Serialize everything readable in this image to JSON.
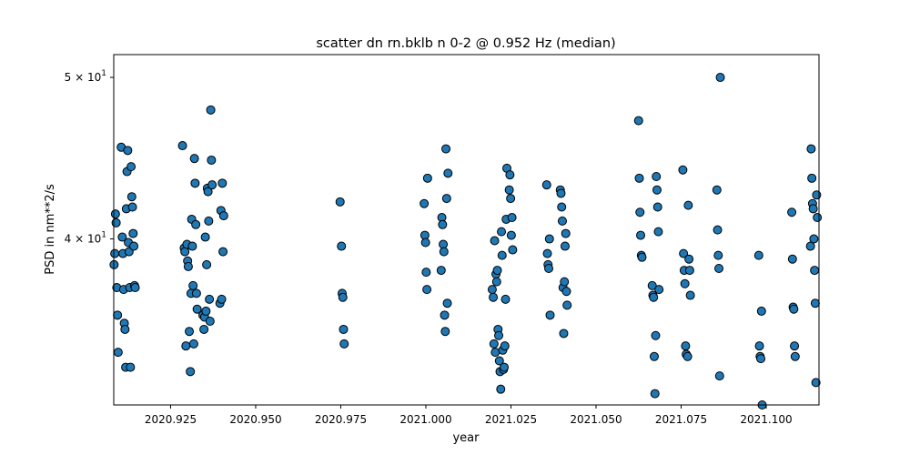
{
  "chart_data": {
    "type": "scatter",
    "title": "scatter dn rn.bklb n 0-2 @ 0.952 Hz (median)",
    "xlabel": "year",
    "ylabel": "PSD in nm**2/s",
    "yscale": "log",
    "xlim": [
      2020.9083,
      2021.1155
    ],
    "ylim": [
      31.8,
      51.6
    ],
    "grid": false,
    "marker_color": "#1f77b4",
    "marker_edge_color": "#000000",
    "x_ticks": [
      {
        "value": 2020.925,
        "label": "2020.925"
      },
      {
        "value": 2020.95,
        "label": "2020.950"
      },
      {
        "value": 2020.975,
        "label": "2020.975"
      },
      {
        "value": 2021.0,
        "label": "2021.000"
      },
      {
        "value": 2021.025,
        "label": "2021.025"
      },
      {
        "value": 2021.05,
        "label": "2021.050"
      },
      {
        "value": 2021.075,
        "label": "2021.075"
      },
      {
        "value": 2021.1,
        "label": "2021.100"
      }
    ],
    "y_ticks": [
      {
        "value": 40,
        "label": "4 × 10",
        "exp": "1"
      },
      {
        "value": 50,
        "label": "5 × 10",
        "exp": "1"
      }
    ],
    "points": [
      [
        2020.9084,
        38.6
      ],
      [
        2020.9086,
        39.2
      ],
      [
        2020.9088,
        41.4
      ],
      [
        2020.909,
        40.9
      ],
      [
        2020.9092,
        37.4
      ],
      [
        2020.9094,
        36.0
      ],
      [
        2020.9096,
        34.2
      ],
      [
        2020.9105,
        45.4
      ],
      [
        2020.9108,
        40.1
      ],
      [
        2020.911,
        39.2
      ],
      [
        2020.9112,
        37.3
      ],
      [
        2020.9114,
        35.6
      ],
      [
        2020.9116,
        35.3
      ],
      [
        2020.9118,
        33.5
      ],
      [
        2020.912,
        41.7
      ],
      [
        2020.9122,
        43.9
      ],
      [
        2020.9124,
        45.2
      ],
      [
        2020.9126,
        39.8
      ],
      [
        2020.9128,
        39.3
      ],
      [
        2020.913,
        37.4
      ],
      [
        2020.9132,
        33.5
      ],
      [
        2020.9134,
        44.2
      ],
      [
        2020.9136,
        42.4
      ],
      [
        2020.9138,
        41.8
      ],
      [
        2020.914,
        40.3
      ],
      [
        2020.9142,
        39.6
      ],
      [
        2020.9144,
        37.5
      ],
      [
        2020.9146,
        37.4
      ],
      [
        2020.9285,
        45.5
      ],
      [
        2020.929,
        39.5
      ],
      [
        2020.9292,
        39.3
      ],
      [
        2020.9295,
        34.5
      ],
      [
        2020.9298,
        39.7
      ],
      [
        2020.93,
        38.8
      ],
      [
        2020.9302,
        38.5
      ],
      [
        2020.9305,
        35.2
      ],
      [
        2020.9308,
        33.3
      ],
      [
        2020.931,
        37.1
      ],
      [
        2020.9312,
        41.1
      ],
      [
        2020.9314,
        39.6
      ],
      [
        2020.9316,
        37.5
      ],
      [
        2020.9318,
        34.6
      ],
      [
        2020.932,
        44.7
      ],
      [
        2020.9322,
        43.2
      ],
      [
        2020.9324,
        40.8
      ],
      [
        2020.9326,
        37.1
      ],
      [
        2020.9328,
        36.3
      ],
      [
        2020.9345,
        36.0
      ],
      [
        2020.9348,
        35.3
      ],
      [
        2020.935,
        35.9
      ],
      [
        2020.9352,
        40.1
      ],
      [
        2020.9354,
        36.2
      ],
      [
        2020.9356,
        38.6
      ],
      [
        2020.9358,
        42.9
      ],
      [
        2020.936,
        42.7
      ],
      [
        2020.9362,
        41.0
      ],
      [
        2020.9364,
        36.8
      ],
      [
        2020.9366,
        35.7
      ],
      [
        2020.9368,
        47.8
      ],
      [
        2020.937,
        44.6
      ],
      [
        2020.9372,
        43.1
      ],
      [
        2020.9395,
        36.6
      ],
      [
        2020.9398,
        41.6
      ],
      [
        2020.94,
        36.8
      ],
      [
        2020.9402,
        43.2
      ],
      [
        2020.9404,
        39.3
      ],
      [
        2020.9406,
        41.3
      ],
      [
        2020.9748,
        42.1
      ],
      [
        2020.9752,
        39.6
      ],
      [
        2020.9754,
        37.1
      ],
      [
        2020.9756,
        36.9
      ],
      [
        2020.9758,
        35.3
      ],
      [
        2020.976,
        34.6
      ],
      [
        2020.9995,
        42.0
      ],
      [
        2020.9997,
        40.2
      ],
      [
        2020.9999,
        39.8
      ],
      [
        2021.0001,
        38.2
      ],
      [
        2021.0003,
        37.3
      ],
      [
        2021.0005,
        43.5
      ],
      [
        2021.0045,
        38.3
      ],
      [
        2021.0047,
        41.2
      ],
      [
        2021.0049,
        40.8
      ],
      [
        2021.0051,
        39.7
      ],
      [
        2021.0053,
        39.3
      ],
      [
        2021.0055,
        36.0
      ],
      [
        2021.0057,
        35.2
      ],
      [
        2021.0059,
        45.3
      ],
      [
        2021.0061,
        42.3
      ],
      [
        2021.0063,
        36.6
      ],
      [
        2021.0065,
        43.8
      ],
      [
        2021.0195,
        37.3
      ],
      [
        2021.0198,
        36.9
      ],
      [
        2021.02,
        34.6
      ],
      [
        2021.0202,
        39.9
      ],
      [
        2021.0204,
        34.2
      ],
      [
        2021.0206,
        38.1
      ],
      [
        2021.0208,
        37.7
      ],
      [
        2021.021,
        38.3
      ],
      [
        2021.0212,
        35.3
      ],
      [
        2021.0214,
        35.0
      ],
      [
        2021.0216,
        33.8
      ],
      [
        2021.0218,
        33.3
      ],
      [
        2021.022,
        32.5
      ],
      [
        2021.0222,
        40.4
      ],
      [
        2021.0224,
        39.1
      ],
      [
        2021.0226,
        34.3
      ],
      [
        2021.0228,
        33.4
      ],
      [
        2021.023,
        33.5
      ],
      [
        2021.0232,
        34.5
      ],
      [
        2021.0234,
        36.8
      ],
      [
        2021.0236,
        41.1
      ],
      [
        2021.0238,
        44.1
      ],
      [
        2021.0245,
        42.8
      ],
      [
        2021.0247,
        43.7
      ],
      [
        2021.0249,
        42.3
      ],
      [
        2021.0251,
        40.2
      ],
      [
        2021.0253,
        41.2
      ],
      [
        2021.0255,
        39.4
      ],
      [
        2021.0355,
        43.1
      ],
      [
        2021.0357,
        39.2
      ],
      [
        2021.0359,
        38.6
      ],
      [
        2021.0361,
        38.4
      ],
      [
        2021.0363,
        40.0
      ],
      [
        2021.0365,
        36.0
      ],
      [
        2021.0395,
        42.8
      ],
      [
        2021.0397,
        42.6
      ],
      [
        2021.0399,
        41.8
      ],
      [
        2021.0401,
        41.0
      ],
      [
        2021.0403,
        37.4
      ],
      [
        2021.0405,
        35.1
      ],
      [
        2021.0407,
        37.7
      ],
      [
        2021.0409,
        39.6
      ],
      [
        2021.0411,
        40.3
      ],
      [
        2021.0413,
        37.2
      ],
      [
        2021.0415,
        36.5
      ],
      [
        2021.0625,
        47.1
      ],
      [
        2021.0627,
        43.5
      ],
      [
        2021.0629,
        41.5
      ],
      [
        2021.0631,
        40.2
      ],
      [
        2021.0633,
        39.1
      ],
      [
        2021.0635,
        39.0
      ],
      [
        2021.0665,
        37.5
      ],
      [
        2021.0667,
        37.0
      ],
      [
        2021.0669,
        36.9
      ],
      [
        2021.0671,
        34.0
      ],
      [
        2021.0673,
        32.3
      ],
      [
        2021.0675,
        35.0
      ],
      [
        2021.0677,
        43.6
      ],
      [
        2021.0679,
        42.8
      ],
      [
        2021.0681,
        41.8
      ],
      [
        2021.0683,
        40.4
      ],
      [
        2021.0685,
        37.3
      ],
      [
        2021.0755,
        44.0
      ],
      [
        2021.0757,
        39.2
      ],
      [
        2021.0759,
        38.3
      ],
      [
        2021.0761,
        37.6
      ],
      [
        2021.0763,
        34.5
      ],
      [
        2021.0765,
        34.1
      ],
      [
        2021.0769,
        34.0
      ],
      [
        2021.0771,
        41.9
      ],
      [
        2021.0773,
        38.9
      ],
      [
        2021.0775,
        38.3
      ],
      [
        2021.0777,
        37.0
      ],
      [
        2021.0855,
        42.8
      ],
      [
        2021.0857,
        40.5
      ],
      [
        2021.0859,
        39.1
      ],
      [
        2021.0861,
        38.4
      ],
      [
        2021.0863,
        33.1
      ],
      [
        2021.0865,
        50.0
      ],
      [
        2021.0978,
        39.1
      ],
      [
        2021.098,
        34.5
      ],
      [
        2021.0982,
        34.0
      ],
      [
        2021.0984,
        33.9
      ],
      [
        2021.0986,
        36.2
      ],
      [
        2021.0988,
        31.8
      ],
      [
        2021.1075,
        41.5
      ],
      [
        2021.1077,
        38.9
      ],
      [
        2021.1079,
        36.4
      ],
      [
        2021.1081,
        36.3
      ],
      [
        2021.1083,
        34.5
      ],
      [
        2021.1085,
        34.0
      ],
      [
        2021.113,
        39.6
      ],
      [
        2021.1132,
        45.3
      ],
      [
        2021.1134,
        43.5
      ],
      [
        2021.1136,
        42.0
      ],
      [
        2021.1138,
        41.7
      ],
      [
        2021.114,
        40.0
      ],
      [
        2021.1142,
        38.3
      ],
      [
        2021.1144,
        36.6
      ],
      [
        2021.1146,
        32.8
      ],
      [
        2021.1148,
        42.5
      ],
      [
        2021.115,
        41.2
      ]
    ]
  }
}
